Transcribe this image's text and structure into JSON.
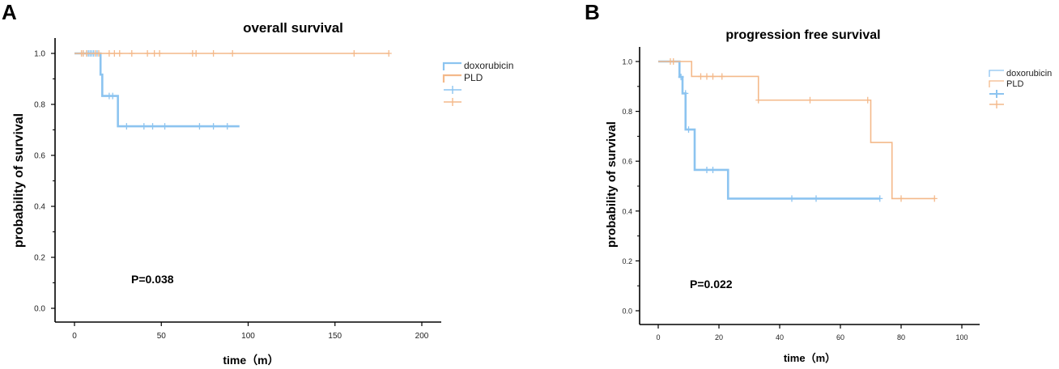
{
  "chart_data": [
    {
      "type": "line",
      "panel_label": "A",
      "title": "overall survival",
      "xlabel": "time（m）",
      "ylabel": "probability of  survival",
      "xlim": [
        0,
        200
      ],
      "ylim": [
        0,
        1.0
      ],
      "x_ticks": [
        "0",
        "50",
        "100",
        "150",
        "200"
      ],
      "y_ticks": [
        "0.0",
        "0.2",
        "0.4",
        "0.6",
        "0.8",
        "1.0"
      ],
      "x_tick_values": [
        0,
        50,
        100,
        150,
        200
      ],
      "y_tick_values": [
        0,
        0.2,
        0.4,
        0.6,
        0.8,
        1.0
      ],
      "annotation": "P=0.038",
      "legend": [
        "doxorubicin",
        "PLD"
      ],
      "series": [
        {
          "name": "doxorubicin",
          "color": "#8cc4f0",
          "steps": [
            [
              0,
              1.0
            ],
            [
              15,
              0.917
            ],
            [
              16,
              0.833
            ],
            [
              25,
              0.714
            ],
            [
              95,
              0.714
            ]
          ],
          "censored": [
            [
              5,
              1.0
            ],
            [
              7,
              1.0
            ],
            [
              8,
              1.0
            ],
            [
              9,
              1.0
            ],
            [
              10,
              1.0
            ],
            [
              11,
              1.0
            ],
            [
              13,
              1.0
            ],
            [
              20,
              0.833
            ],
            [
              22,
              0.833
            ],
            [
              30,
              0.714
            ],
            [
              40,
              0.714
            ],
            [
              45,
              0.714
            ],
            [
              52,
              0.714
            ],
            [
              72,
              0.714
            ],
            [
              80,
              0.714
            ],
            [
              88,
              0.714
            ]
          ]
        },
        {
          "name": "PLD",
          "color": "#f4b98a",
          "steps": [
            [
              0,
              1.0
            ],
            [
              181,
              1.0
            ]
          ],
          "censored": [
            [
              4,
              1.0
            ],
            [
              5,
              1.0
            ],
            [
              7,
              1.0
            ],
            [
              12,
              1.0
            ],
            [
              14,
              1.0
            ],
            [
              20,
              1.0
            ],
            [
              23,
              1.0
            ],
            [
              26,
              1.0
            ],
            [
              33,
              1.0
            ],
            [
              42,
              1.0
            ],
            [
              46,
              1.0
            ],
            [
              49,
              1.0
            ],
            [
              68,
              1.0
            ],
            [
              70,
              1.0
            ],
            [
              80,
              1.0
            ],
            [
              91,
              1.0
            ],
            [
              161,
              1.0
            ],
            [
              181,
              1.0
            ]
          ]
        }
      ]
    },
    {
      "type": "line",
      "panel_label": "B",
      "title": "progression free survival",
      "xlabel": "time（m）",
      "ylabel": "probability of survival",
      "xlim": [
        0,
        100
      ],
      "ylim": [
        0,
        1.0
      ],
      "x_ticks": [
        "0",
        "20",
        "40",
        "60",
        "80",
        "100"
      ],
      "y_ticks": [
        "0.0",
        "0.2",
        "0.4",
        "0.6",
        "0.8",
        "1.0"
      ],
      "x_tick_values": [
        0,
        20,
        40,
        60,
        80,
        100
      ],
      "y_tick_values": [
        0,
        0.2,
        0.4,
        0.6,
        0.8,
        1.0
      ],
      "annotation": "P=0.022",
      "legend": [
        "doxorubicin",
        "PLD"
      ],
      "series": [
        {
          "name": "doxorubicin",
          "color": "#8cc4f0",
          "steps": [
            [
              0,
              1.0
            ],
            [
              7,
              0.938
            ],
            [
              8,
              0.872
            ],
            [
              9,
              0.727
            ],
            [
              12,
              0.565
            ],
            [
              23,
              0.45
            ],
            [
              73,
              0.45
            ]
          ],
          "censored": [
            [
              7.5,
              0.938
            ],
            [
              9,
              0.872
            ],
            [
              10,
              0.727
            ],
            [
              16,
              0.565
            ],
            [
              18,
              0.565
            ],
            [
              44,
              0.45
            ],
            [
              52,
              0.45
            ],
            [
              73,
              0.45
            ]
          ]
        },
        {
          "name": "PLD",
          "color": "#f4b98a",
          "steps": [
            [
              0,
              1.0
            ],
            [
              11,
              0.94
            ],
            [
              33,
              0.845
            ],
            [
              70,
              0.675
            ],
            [
              77,
              0.45
            ],
            [
              91,
              0.45
            ]
          ],
          "censored": [
            [
              4,
              1.0
            ],
            [
              5,
              1.0
            ],
            [
              14,
              0.94
            ],
            [
              16,
              0.94
            ],
            [
              18,
              0.94
            ],
            [
              21,
              0.94
            ],
            [
              33,
              0.845
            ],
            [
              50,
              0.845
            ],
            [
              69,
              0.845
            ],
            [
              80,
              0.45
            ],
            [
              91,
              0.45
            ]
          ]
        }
      ]
    }
  ]
}
